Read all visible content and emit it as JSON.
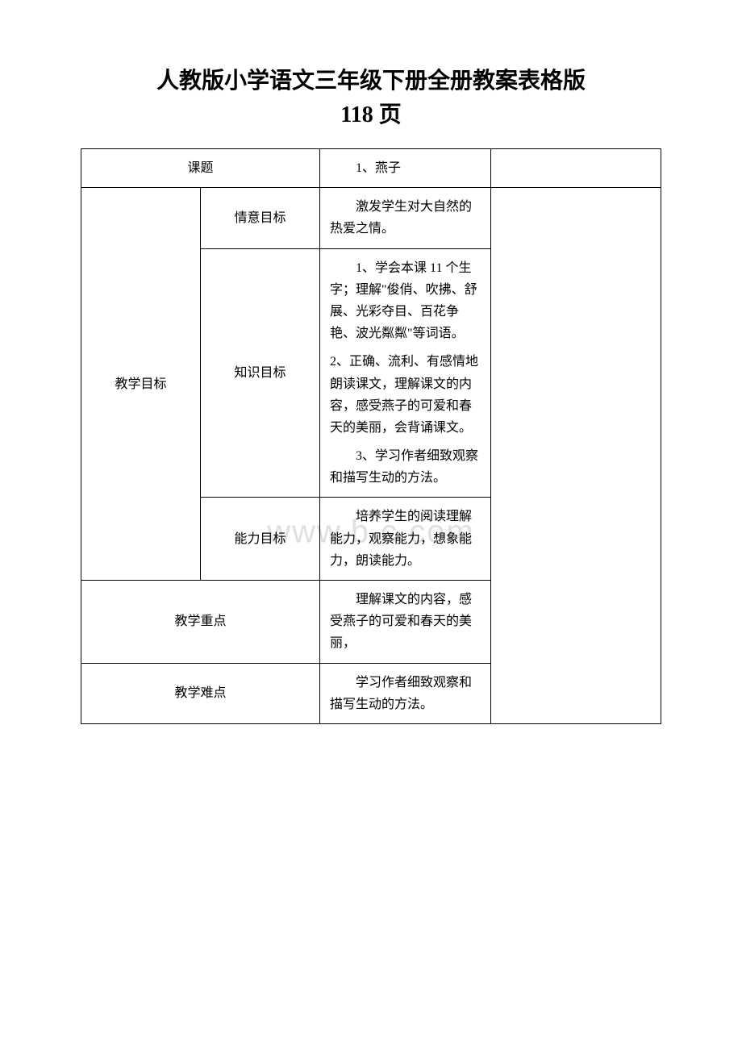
{
  "page": {
    "title_line1": "人教版小学语文三年级下册全册教案表格版",
    "title_line2": "118 页",
    "watermark": "www.b    c.com"
  },
  "table": {
    "row_topic": {
      "label": "课题",
      "value": "1、燕子"
    },
    "row_goals": {
      "label": "教学目标",
      "sub_affective": {
        "label": "情意目标",
        "content": "激发学生对大自然的热爱之情。"
      },
      "sub_knowledge": {
        "label": "知识目标",
        "content1": "1、学会本课 11 个生字；理解\"俊俏、吹拂、舒展、光彩夺目、百花争艳、波光粼粼\"等词语。",
        "content2": "2、正确、流利、有感情地朗读课文，理解课文的内容，感受燕子的可爱和春天的美丽，会背诵课文。",
        "content3": "3、学习作者细致观察和描写生动的方法。"
      },
      "sub_ability": {
        "label": "能力目标",
        "content": "培养学生的阅读理解能力，观察能力，想象能力，朗读能力。"
      }
    },
    "row_keypoint": {
      "label": "教学重点",
      "content": "理解课文的内容，感受燕子的可爱和春天的美丽，"
    },
    "row_difficulty": {
      "label": "教学难点",
      "content": "学习作者细致观察和描写生动的方法。"
    }
  },
  "styling": {
    "background_color": "#ffffff",
    "text_color": "#000000",
    "border_color": "#000000",
    "watermark_color": "#e0e0e0",
    "title_fontsize": 28,
    "cell_fontsize": 16,
    "font_family": "SimSun"
  }
}
